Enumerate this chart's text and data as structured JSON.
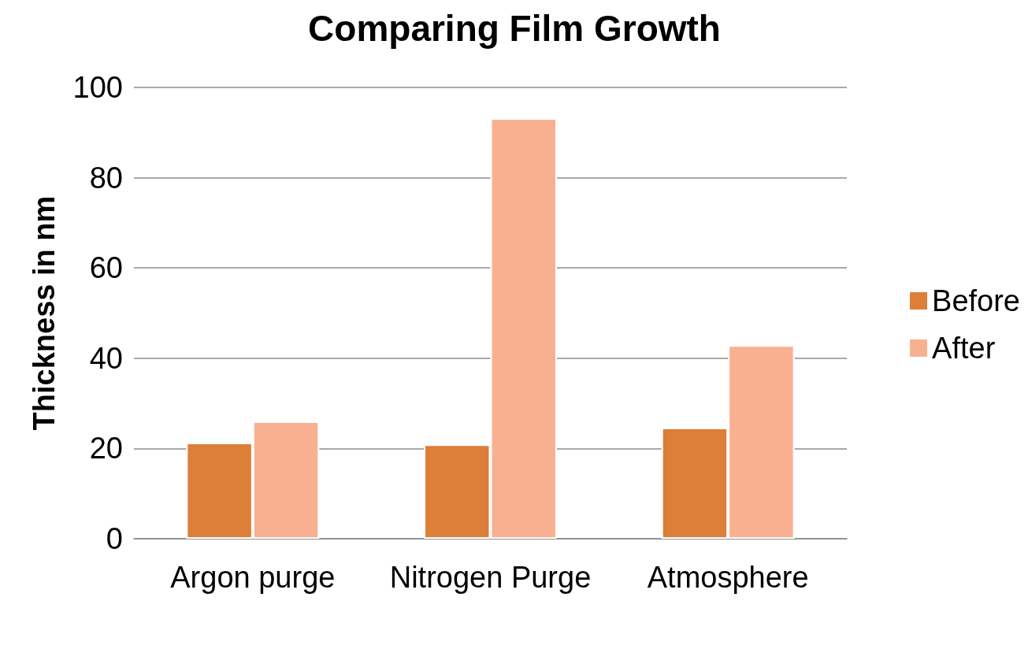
{
  "chart_data": {
    "type": "bar",
    "title": "Comparing Film Growth",
    "ylabel": "Thickness in nm",
    "categories": [
      "Argon purge",
      "Nitrogen Purge",
      "Atmosphere"
    ],
    "series": [
      {
        "name": "Before",
        "color": "#dd7e39",
        "values": [
          21.3,
          20.9,
          24.6
        ]
      },
      {
        "name": "After",
        "color": "#f9b090",
        "values": [
          26.0,
          93.2,
          42.9
        ]
      }
    ],
    "ylim": [
      0,
      100
    ],
    "yticks": [
      0,
      20,
      40,
      60,
      80,
      100
    ],
    "grid": "y",
    "legend": "right"
  }
}
